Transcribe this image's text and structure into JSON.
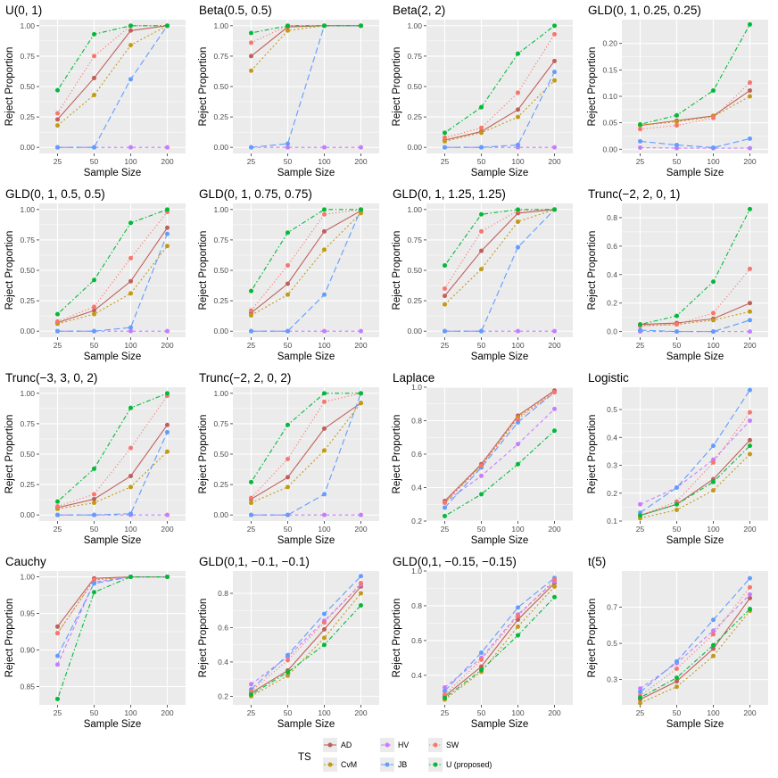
{
  "chart_data": {
    "type": "line",
    "x_label": "Sample Size",
    "y_label": "Reject Proportion",
    "x_categories": [
      "25",
      "50",
      "100",
      "200"
    ],
    "legend": {
      "title": "TS",
      "entries": [
        "AD",
        "CvM",
        "HV",
        "JB",
        "SW",
        "U (proposed)"
      ],
      "position": "bottom"
    },
    "series_style": [
      {
        "name": "AD",
        "color": "#c0605a",
        "dash": "solid"
      },
      {
        "name": "CvM",
        "color": "#c39a14",
        "dash": "dotted"
      },
      {
        "name": "HV",
        "color": "#c77cff",
        "dash": "dashed"
      },
      {
        "name": "JB",
        "color": "#619cff",
        "dash": "longdash"
      },
      {
        "name": "SW",
        "color": "#f8766d",
        "dash": "dotted-fine"
      },
      {
        "name": "U (proposed)",
        "color": "#00ba38",
        "dash": "dotdash"
      }
    ],
    "panels": [
      {
        "title": "U(0, 1)",
        "ylim": [
          -0.05,
          1.05
        ],
        "yticks": [
          0,
          0.25,
          0.5,
          0.75,
          1
        ],
        "ytick_labels": [
          "0.00",
          "0.25",
          "0.50",
          "0.75",
          "1.00"
        ],
        "series": {
          "AD": [
            0.23,
            0.57,
            0.96,
            1.0
          ],
          "CvM": [
            0.18,
            0.43,
            0.84,
            1.0
          ],
          "HV": [
            0.0,
            0.0,
            0.0,
            0.0
          ],
          "JB": [
            0.0,
            0.0,
            0.56,
            1.0
          ],
          "SW": [
            0.28,
            0.75,
            1.0,
            1.0
          ],
          "U (proposed)": [
            0.47,
            0.93,
            1.0,
            1.0
          ]
        }
      },
      {
        "title": "Beta(0.5, 0.5)",
        "ylim": [
          -0.05,
          1.05
        ],
        "yticks": [
          0,
          0.25,
          0.5,
          0.75,
          1
        ],
        "ytick_labels": [
          "0.00",
          "0.25",
          "0.50",
          "0.75",
          "1.00"
        ],
        "series": {
          "AD": [
            0.75,
            0.99,
            1.0,
            1.0
          ],
          "CvM": [
            0.63,
            0.96,
            1.0,
            1.0
          ],
          "HV": [
            0.0,
            0.0,
            0.0,
            0.0
          ],
          "JB": [
            0.0,
            0.03,
            1.0,
            1.0
          ],
          "SW": [
            0.86,
            1.0,
            1.0,
            1.0
          ],
          "U (proposed)": [
            0.94,
            1.0,
            1.0,
            1.0
          ]
        }
      },
      {
        "title": "Beta(2, 2)",
        "ylim": [
          -0.05,
          1.05
        ],
        "yticks": [
          0,
          0.25,
          0.5,
          0.75,
          1
        ],
        "ytick_labels": [
          "0.00",
          "0.25",
          "0.50",
          "0.75",
          "1.00"
        ],
        "series": {
          "AD": [
            0.06,
            0.13,
            0.31,
            0.71
          ],
          "CvM": [
            0.05,
            0.12,
            0.25,
            0.55
          ],
          "HV": [
            0.0,
            0.0,
            0.0,
            0.0
          ],
          "JB": [
            0.0,
            0.0,
            0.02,
            0.62
          ],
          "SW": [
            0.08,
            0.16,
            0.45,
            0.93
          ],
          "U (proposed)": [
            0.12,
            0.33,
            0.77,
            1.0
          ]
        }
      },
      {
        "title": "GLD(0, 1, 0.25, 0.25)",
        "ylim": [
          -0.008,
          0.245
        ],
        "yticks": [
          0,
          0.05,
          0.1,
          0.15,
          0.2
        ],
        "ytick_labels": [
          "0.00",
          "0.05",
          "0.10",
          "0.15",
          "0.20"
        ],
        "series": {
          "AD": [
            0.045,
            0.054,
            0.063,
            0.111
          ],
          "CvM": [
            0.045,
            0.052,
            0.062,
            0.1
          ],
          "HV": [
            0.003,
            0.002,
            0.002,
            0.002
          ],
          "JB": [
            0.015,
            0.008,
            0.003,
            0.02
          ],
          "SW": [
            0.038,
            0.045,
            0.059,
            0.126
          ],
          "U (proposed)": [
            0.047,
            0.064,
            0.111,
            0.236
          ]
        }
      },
      {
        "title": "GLD(0, 1, 0.5, 0.5)",
        "ylim": [
          -0.05,
          1.05
        ],
        "yticks": [
          0,
          0.25,
          0.5,
          0.75,
          1
        ],
        "ytick_labels": [
          "0.00",
          "0.25",
          "0.50",
          "0.75",
          "1.00"
        ],
        "series": {
          "AD": [
            0.07,
            0.17,
            0.41,
            0.85
          ],
          "CvM": [
            0.06,
            0.14,
            0.31,
            0.7
          ],
          "HV": [
            0.0,
            0.0,
            0.0,
            0.0
          ],
          "JB": [
            0.0,
            0.0,
            0.03,
            0.8
          ],
          "SW": [
            0.08,
            0.2,
            0.6,
            0.98
          ],
          "U (proposed)": [
            0.14,
            0.42,
            0.89,
            1.0
          ]
        }
      },
      {
        "title": "GLD(0, 1, 0.75, 0.75)",
        "ylim": [
          -0.05,
          1.05
        ],
        "yticks": [
          0,
          0.25,
          0.5,
          0.75,
          1
        ],
        "ytick_labels": [
          "0.00",
          "0.25",
          "0.50",
          "0.75",
          "1.00"
        ],
        "series": {
          "AD": [
            0.15,
            0.39,
            0.82,
            0.99
          ],
          "CvM": [
            0.13,
            0.3,
            0.67,
            0.97
          ],
          "HV": [
            0.0,
            0.0,
            0.0,
            0.0
          ],
          "JB": [
            0.0,
            0.0,
            0.3,
            1.0
          ],
          "SW": [
            0.17,
            0.54,
            0.96,
            1.0
          ],
          "U (proposed)": [
            0.33,
            0.81,
            1.0,
            1.0
          ]
        }
      },
      {
        "title": "GLD(0, 1, 1.25, 1.25)",
        "ylim": [
          -0.05,
          1.05
        ],
        "yticks": [
          0,
          0.25,
          0.5,
          0.75,
          1
        ],
        "ytick_labels": [
          "0.00",
          "0.25",
          "0.50",
          "0.75",
          "1.00"
        ],
        "series": {
          "AD": [
            0.29,
            0.66,
            0.97,
            1.0
          ],
          "CvM": [
            0.22,
            0.51,
            0.9,
            1.0
          ],
          "HV": [
            0.0,
            0.0,
            0.0,
            0.0
          ],
          "JB": [
            0.0,
            0.0,
            0.69,
            1.0
          ],
          "SW": [
            0.35,
            0.82,
            0.99,
            1.0
          ],
          "U (proposed)": [
            0.54,
            0.96,
            1.0,
            1.0
          ]
        }
      },
      {
        "title": "Trunc(−2, 2, 0, 1)",
        "ylim": [
          -0.04,
          0.9
        ],
        "yticks": [
          0,
          0.2,
          0.4,
          0.6,
          0.8
        ],
        "ytick_labels": [
          "0.0",
          "0.2",
          "0.4",
          "0.6",
          "0.8"
        ],
        "series": {
          "AD": [
            0.05,
            0.06,
            0.09,
            0.2
          ],
          "CvM": [
            0.04,
            0.05,
            0.08,
            0.14
          ],
          "HV": [
            0.0,
            0.0,
            0.0,
            0.0
          ],
          "JB": [
            0.01,
            0.0,
            0.0,
            0.08
          ],
          "SW": [
            0.04,
            0.05,
            0.13,
            0.44
          ],
          "U (proposed)": [
            0.05,
            0.11,
            0.35,
            0.86
          ]
        }
      },
      {
        "title": "Trunc(−3, 3, 0, 2)",
        "ylim": [
          -0.05,
          1.05
        ],
        "yticks": [
          0,
          0.25,
          0.5,
          0.75,
          1
        ],
        "ytick_labels": [
          "0.00",
          "0.25",
          "0.50",
          "0.75",
          "1.00"
        ],
        "series": {
          "AD": [
            0.06,
            0.13,
            0.32,
            0.74
          ],
          "CvM": [
            0.05,
            0.1,
            0.23,
            0.52
          ],
          "HV": [
            0.0,
            0.0,
            0.0,
            0.0
          ],
          "JB": [
            0.0,
            0.0,
            0.01,
            0.68
          ],
          "SW": [
            0.07,
            0.17,
            0.55,
            0.98
          ],
          "U (proposed)": [
            0.11,
            0.38,
            0.88,
            1.0
          ]
        }
      },
      {
        "title": "Trunc(−2, 2, 0, 2)",
        "ylim": [
          -0.05,
          1.05
        ],
        "yticks": [
          0,
          0.25,
          0.5,
          0.75,
          1
        ],
        "ytick_labels": [
          "0.00",
          "0.25",
          "0.50",
          "0.75",
          "1.00"
        ],
        "series": {
          "AD": [
            0.13,
            0.31,
            0.71,
            0.92
          ],
          "CvM": [
            0.1,
            0.23,
            0.53,
            0.92
          ],
          "HV": [
            0.0,
            0.0,
            0.0,
            0.0
          ],
          "JB": [
            0.0,
            0.0,
            0.17,
            1.0
          ],
          "SW": [
            0.14,
            0.46,
            0.93,
            1.0
          ],
          "U (proposed)": [
            0.27,
            0.74,
            1.0,
            1.0
          ]
        }
      },
      {
        "title": "Laplace",
        "ylim": [
          0.2,
          1.0
        ],
        "yticks": [
          0.2,
          0.4,
          0.6,
          0.8,
          1.0
        ],
        "ytick_labels": [
          "0.2",
          "0.4",
          "0.6",
          "0.8",
          "1.0"
        ],
        "series": {
          "AD": [
            0.32,
            0.54,
            0.83,
            0.98
          ],
          "CvM": [
            0.31,
            0.53,
            0.82,
            0.97
          ],
          "HV": [
            0.31,
            0.47,
            0.66,
            0.87
          ],
          "JB": [
            0.28,
            0.52,
            0.79,
            0.97
          ],
          "SW": [
            0.31,
            0.53,
            0.81,
            0.97
          ],
          "U (proposed)": [
            0.23,
            0.36,
            0.54,
            0.74
          ]
        }
      },
      {
        "title": "Logistic",
        "ylim": [
          0.1,
          0.58
        ],
        "yticks": [
          0.1,
          0.2,
          0.3,
          0.4,
          0.5
        ],
        "ytick_labels": [
          "0.1",
          "0.2",
          "0.3",
          "0.4",
          "0.5"
        ],
        "series": {
          "AD": [
            0.12,
            0.16,
            0.25,
            0.39
          ],
          "CvM": [
            0.11,
            0.14,
            0.21,
            0.34
          ],
          "HV": [
            0.16,
            0.22,
            0.32,
            0.46
          ],
          "JB": [
            0.13,
            0.22,
            0.37,
            0.57
          ],
          "SW": [
            0.12,
            0.17,
            0.31,
            0.49
          ],
          "U (proposed)": [
            0.12,
            0.16,
            0.24,
            0.37
          ]
        }
      },
      {
        "title": "Cauchy",
        "ylim": [
          0.825,
          1.008
        ],
        "yticks": [
          0.85,
          0.9,
          0.95,
          1.0
        ],
        "ytick_labels": [
          "0.85",
          "0.90",
          "0.95",
          "1.00"
        ],
        "series": {
          "AD": [
            0.932,
            0.998,
            1.0,
            1.0
          ],
          "CvM": [
            0.923,
            0.996,
            1.0,
            1.0
          ],
          "HV": [
            0.88,
            0.993,
            1.0,
            1.0
          ],
          "JB": [
            0.892,
            0.991,
            1.0,
            1.0
          ],
          "SW": [
            0.923,
            0.996,
            1.0,
            1.0
          ],
          "U (proposed)": [
            0.833,
            0.979,
            1.0,
            1.0
          ]
        }
      },
      {
        "title": "GLD(0,1, −0.1, −0.1)",
        "ylim": [
          0.15,
          0.93
        ],
        "yticks": [
          0.2,
          0.4,
          0.6,
          0.8
        ],
        "ytick_labels": [
          "0.2",
          "0.4",
          "0.6",
          "0.8"
        ],
        "series": {
          "AD": [
            0.22,
            0.35,
            0.59,
            0.84
          ],
          "CvM": [
            0.2,
            0.32,
            0.54,
            0.8
          ],
          "HV": [
            0.27,
            0.43,
            0.64,
            0.85
          ],
          "JB": [
            0.24,
            0.44,
            0.68,
            0.9
          ],
          "SW": [
            0.23,
            0.41,
            0.63,
            0.86
          ],
          "U (proposed)": [
            0.21,
            0.34,
            0.5,
            0.73
          ]
        }
      },
      {
        "title": "GLD(0,1, −0.15, −0.15)",
        "ylim": [
          0.23,
          1.0
        ],
        "yticks": [
          0.4,
          0.6,
          0.8,
          1.0
        ],
        "ytick_labels": [
          "0.4",
          "0.6",
          "0.8",
          "1.0"
        ],
        "series": {
          "AD": [
            0.28,
            0.45,
            0.72,
            0.93
          ],
          "CvM": [
            0.26,
            0.42,
            0.68,
            0.91
          ],
          "HV": [
            0.33,
            0.5,
            0.75,
            0.94
          ],
          "JB": [
            0.31,
            0.53,
            0.79,
            0.96
          ],
          "SW": [
            0.29,
            0.49,
            0.74,
            0.95
          ],
          "U (proposed)": [
            0.27,
            0.43,
            0.63,
            0.85
          ]
        }
      },
      {
        "title": "t(5)",
        "ylim": [
          0.16,
          0.9
        ],
        "yticks": [
          0.3,
          0.5,
          0.7
        ],
        "ytick_labels": [
          "0.3",
          "0.5",
          "0.7"
        ],
        "series": {
          "AD": [
            0.19,
            0.29,
            0.47,
            0.75
          ],
          "CvM": [
            0.17,
            0.26,
            0.43,
            0.68
          ],
          "HV": [
            0.25,
            0.39,
            0.57,
            0.77
          ],
          "JB": [
            0.23,
            0.4,
            0.63,
            0.86
          ],
          "SW": [
            0.21,
            0.36,
            0.55,
            0.81
          ],
          "U (proposed)": [
            0.2,
            0.31,
            0.49,
            0.69
          ]
        }
      }
    ]
  }
}
